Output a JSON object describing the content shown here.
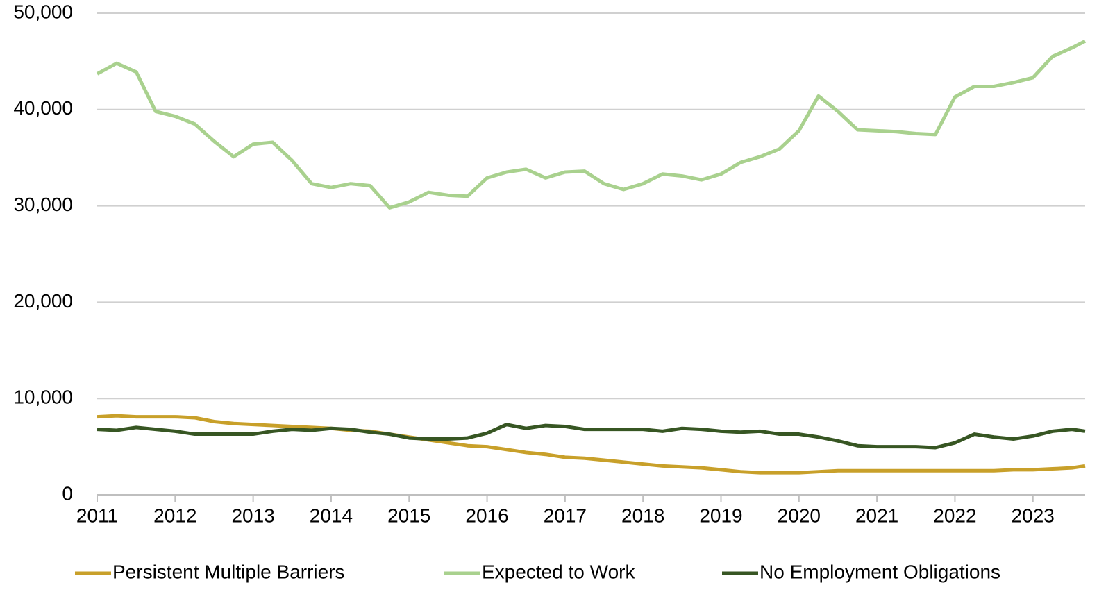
{
  "chart_data": {
    "type": "line",
    "x": [
      2011,
      2011.25,
      2011.5,
      2011.75,
      2012,
      2012.25,
      2012.5,
      2012.75,
      2013,
      2013.25,
      2013.5,
      2013.75,
      2014,
      2014.25,
      2014.5,
      2014.75,
      2015,
      2015.25,
      2015.5,
      2015.75,
      2016,
      2016.25,
      2016.5,
      2016.75,
      2017,
      2017.25,
      2017.5,
      2017.75,
      2018,
      2018.25,
      2018.5,
      2018.75,
      2019,
      2019.25,
      2019.5,
      2019.75,
      2020,
      2020.25,
      2020.5,
      2020.75,
      2021,
      2021.25,
      2021.5,
      2021.75,
      2022,
      2022.25,
      2022.5,
      2022.75,
      2023,
      2023.25,
      2023.5,
      2023.67
    ],
    "series": [
      {
        "name": "Persistent Multiple Barriers",
        "color": "#c8a02a",
        "values": [
          8100,
          8200,
          8100,
          8100,
          8100,
          8000,
          7600,
          7400,
          7300,
          7200,
          7100,
          7000,
          6900,
          6700,
          6600,
          6300,
          6000,
          5700,
          5400,
          5100,
          5000,
          4700,
          4400,
          4200,
          3900,
          3800,
          3600,
          3400,
          3200,
          3000,
          2900,
          2800,
          2600,
          2400,
          2300,
          2300,
          2300,
          2400,
          2500,
          2500,
          2500,
          2500,
          2500,
          2500,
          2500,
          2500,
          2500,
          2600,
          2600,
          2700,
          2800,
          3000
        ]
      },
      {
        "name": "Expected to Work",
        "color": "#a9d18e",
        "values": [
          43700,
          44800,
          43900,
          39800,
          39300,
          38500,
          36700,
          35100,
          36400,
          36600,
          34700,
          32300,
          31900,
          32300,
          32100,
          29800,
          30400,
          31400,
          31100,
          31000,
          32900,
          33500,
          33800,
          32900,
          33500,
          33600,
          32300,
          31700,
          32300,
          33300,
          33100,
          32700,
          33300,
          34500,
          35100,
          35900,
          37800,
          41400,
          39800,
          37900,
          37800,
          37700,
          37500,
          37400,
          41300,
          42400,
          42400,
          42800,
          43300,
          45500,
          46400,
          47100
        ]
      },
      {
        "name": "No Employment Obligations",
        "color": "#375623",
        "values": [
          6800,
          6700,
          7000,
          6800,
          6600,
          6300,
          6300,
          6300,
          6300,
          6600,
          6800,
          6700,
          6900,
          6800,
          6500,
          6300,
          5900,
          5800,
          5800,
          5900,
          6400,
          7300,
          6900,
          7200,
          7100,
          6800,
          6800,
          6800,
          6800,
          6600,
          6900,
          6800,
          6600,
          6500,
          6600,
          6300,
          6300,
          6000,
          5600,
          5100,
          5000,
          5000,
          5000,
          4900,
          5400,
          6300,
          6000,
          5800,
          6100,
          6600,
          6800,
          6600
        ]
      }
    ],
    "xlim": [
      2011,
      2023.67
    ],
    "xticks": [
      2011,
      2012,
      2013,
      2014,
      2015,
      2016,
      2017,
      2018,
      2019,
      2020,
      2021,
      2022,
      2023
    ],
    "ylim": [
      0,
      50000
    ],
    "yticks": [
      0,
      {
        "value": 10000,
        "label": "10,000"
      },
      {
        "value": 20000,
        "label": "20,000"
      },
      {
        "value": 30000,
        "label": "30,000"
      },
      {
        "value": 40000,
        "label": "40,000"
      },
      {
        "value": 50000,
        "label": "50,000"
      }
    ],
    "grid": true,
    "legend": "bottom"
  }
}
